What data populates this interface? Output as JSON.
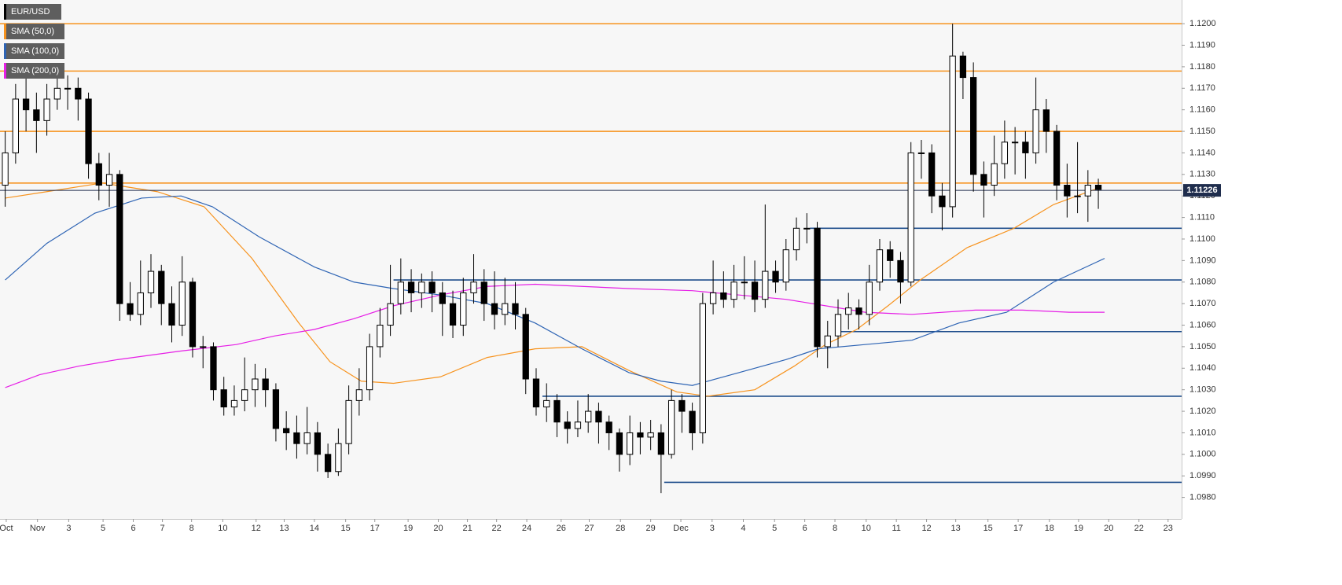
{
  "chart_data": {
    "type": "candlestick",
    "name": "EUR/USD",
    "up_color": "#ffffff",
    "down_color": "#000000",
    "x": [
      0,
      1,
      2,
      3,
      4,
      5,
      6,
      7,
      8,
      9,
      10,
      11,
      12,
      13,
      14,
      15,
      16,
      17,
      18,
      19,
      20,
      21,
      22,
      23,
      24,
      25,
      26,
      27,
      28,
      29,
      30,
      31,
      32,
      33,
      34,
      35,
      36,
      37,
      38,
      39,
      40,
      41,
      42,
      43,
      44,
      45,
      46,
      47,
      48,
      49,
      50,
      51,
      52,
      53,
      54,
      55,
      56,
      57,
      58,
      59,
      60,
      61,
      62,
      63,
      64,
      65,
      66,
      67,
      68,
      69,
      70,
      71,
      72,
      73,
      74,
      75,
      76,
      77,
      78,
      79,
      80,
      81,
      82,
      83,
      84,
      85,
      86,
      87,
      88,
      89,
      90,
      91,
      92,
      93,
      94,
      95,
      96,
      97,
      98,
      99,
      100,
      101,
      102,
      103,
      104,
      105
    ],
    "open": [
      1.1125,
      1.114,
      1.1165,
      1.116,
      1.1155,
      1.1165,
      1.117,
      1.117,
      1.1165,
      1.1135,
      1.1125,
      1.113,
      1.107,
      1.1065,
      1.1075,
      1.1085,
      1.107,
      1.106,
      1.108,
      1.105,
      1.105,
      1.103,
      1.1022,
      1.1025,
      1.103,
      1.1035,
      1.103,
      1.1012,
      1.101,
      1.1005,
      1.101,
      1.1,
      1.0992,
      1.1005,
      1.1025,
      1.103,
      1.105,
      1.106,
      1.107,
      1.108,
      1.1075,
      1.108,
      1.1075,
      1.107,
      1.106,
      1.1075,
      1.108,
      1.107,
      1.1065,
      1.107,
      1.1065,
      1.1035,
      1.1022,
      1.1025,
      1.1015,
      1.1012,
      1.1015,
      1.102,
      1.1015,
      1.101,
      1.1,
      1.101,
      1.1008,
      1.101,
      1.1,
      1.1025,
      1.102,
      1.101,
      1.107,
      1.1075,
      1.1072,
      1.108,
      1.108,
      1.1072,
      1.1085,
      1.108,
      1.1095,
      1.1105,
      1.1105,
      1.105,
      1.1055,
      1.1065,
      1.1068,
      1.1065,
      1.108,
      1.1095,
      1.109,
      1.108,
      1.114,
      1.114,
      1.112,
      1.1115,
      1.1185,
      1.1175,
      1.113,
      1.1125,
      1.1135,
      1.1145,
      1.1145,
      1.114,
      1.116,
      1.115,
      1.1125,
      1.112,
      1.112,
      1.1125
    ],
    "high": [
      1.115,
      1.1172,
      1.1175,
      1.1168,
      1.1172,
      1.1178,
      1.1176,
      1.1175,
      1.1168,
      1.114,
      1.114,
      1.1132,
      1.108,
      1.109,
      1.1093,
      1.1088,
      1.1078,
      1.1092,
      1.1082,
      1.1055,
      1.1052,
      1.1036,
      1.1032,
      1.1045,
      1.1042,
      1.104,
      1.1033,
      1.102,
      1.1018,
      1.1022,
      1.1015,
      1.1005,
      1.1012,
      1.1032,
      1.104,
      1.1056,
      1.1068,
      1.1088,
      1.1091,
      1.1086,
      1.1084,
      1.1085,
      1.108,
      1.1076,
      1.1082,
      1.1093,
      1.1086,
      1.1085,
      1.1082,
      1.108,
      1.1068,
      1.104,
      1.1033,
      1.1028,
      1.102,
      1.1025,
      1.1028,
      1.1024,
      1.1018,
      1.1012,
      1.1018,
      1.1015,
      1.1016,
      1.1014,
      1.103,
      1.1028,
      1.1024,
      1.1075,
      1.109,
      1.1085,
      1.1088,
      1.1092,
      1.109,
      1.1116,
      1.109,
      1.11,
      1.111,
      1.1112,
      1.1108,
      1.1062,
      1.1072,
      1.1075,
      1.1072,
      1.1088,
      1.11,
      1.1099,
      1.1094,
      1.1145,
      1.1146,
      1.1144,
      1.1126,
      1.12,
      1.1187,
      1.1182,
      1.1136,
      1.1148,
      1.1155,
      1.1152,
      1.115,
      1.1175,
      1.1165,
      1.1153,
      1.1135,
      1.1145,
      1.1132,
      1.1128
    ],
    "low": [
      1.1115,
      1.1135,
      1.115,
      1.114,
      1.1148,
      1.116,
      1.116,
      1.1155,
      1.1128,
      1.1118,
      1.1115,
      1.1062,
      1.1062,
      1.106,
      1.1068,
      1.106,
      1.1052,
      1.1055,
      1.1045,
      1.104,
      1.1025,
      1.1018,
      1.1018,
      1.102,
      1.1022,
      1.1022,
      1.1006,
      1.1002,
      1.0998,
      1.1,
      1.0992,
      1.0989,
      1.099,
      1.1,
      1.1018,
      1.1025,
      1.1045,
      1.1055,
      1.1065,
      1.1066,
      1.1068,
      1.1066,
      1.1055,
      1.1054,
      1.1055,
      1.107,
      1.1062,
      1.1058,
      1.106,
      1.1058,
      1.1028,
      1.1018,
      1.1015,
      1.1008,
      1.1005,
      1.1008,
      1.101,
      1.1005,
      1.1002,
      1.0992,
      1.0995,
      1.1,
      1.1002,
      1.0982,
      1.0998,
      1.101,
      1.1002,
      1.1005,
      1.1065,
      1.1068,
      1.1068,
      1.1072,
      1.1066,
      1.1068,
      1.1075,
      1.1076,
      1.109,
      1.1098,
      1.1045,
      1.104,
      1.105,
      1.1058,
      1.1058,
      1.106,
      1.1076,
      1.1082,
      1.107,
      1.1078,
      1.1128,
      1.1112,
      1.1104,
      1.111,
      1.1165,
      1.1122,
      1.111,
      1.112,
      1.1128,
      1.113,
      1.1128,
      1.1135,
      1.114,
      1.1118,
      1.111,
      1.1112,
      1.1108,
      1.1114
    ],
    "close": [
      1.114,
      1.1165,
      1.116,
      1.1155,
      1.1165,
      1.117,
      1.117,
      1.1165,
      1.1135,
      1.1125,
      1.113,
      1.107,
      1.1065,
      1.1075,
      1.1085,
      1.107,
      1.106,
      1.108,
      1.105,
      1.105,
      1.103,
      1.1022,
      1.1025,
      1.103,
      1.1035,
      1.103,
      1.1012,
      1.101,
      1.1005,
      1.101,
      1.1,
      1.0992,
      1.1005,
      1.1025,
      1.103,
      1.105,
      1.106,
      1.107,
      1.108,
      1.1075,
      1.108,
      1.1075,
      1.107,
      1.106,
      1.1075,
      1.108,
      1.107,
      1.1065,
      1.107,
      1.1065,
      1.1035,
      1.1022,
      1.1025,
      1.1015,
      1.1012,
      1.1015,
      1.102,
      1.1015,
      1.101,
      1.1,
      1.101,
      1.1008,
      1.101,
      1.1,
      1.1025,
      1.102,
      1.101,
      1.107,
      1.1075,
      1.1072,
      1.108,
      1.108,
      1.1072,
      1.1085,
      1.108,
      1.1095,
      1.1105,
      1.1105,
      1.105,
      1.1055,
      1.1065,
      1.1068,
      1.1065,
      1.108,
      1.1095,
      1.109,
      1.108,
      1.114,
      1.114,
      1.112,
      1.1115,
      1.1185,
      1.1175,
      1.113,
      1.1125,
      1.1135,
      1.1145,
      1.1145,
      1.114,
      1.116,
      1.115,
      1.1125,
      1.112,
      1.112,
      1.1125,
      1.1123
    ],
    "sma": [
      {
        "name": "SMA (50,0)",
        "color": "#f7931e",
        "x": [
          0,
          4,
          9.3,
          14.6,
          19.1,
          23.7,
          28.2,
          31.2,
          34.2,
          37.3,
          41.8,
          46.3,
          50.9,
          55.4,
          59.9,
          64.5,
          67.5,
          72,
          75.8,
          78.8,
          81.8,
          84.8,
          87.9,
          92.4,
          96.9,
          100.7,
          105.2
        ],
        "values": [
          1.1119,
          1.1122,
          1.1126,
          1.1122,
          1.1115,
          1.1091,
          1.1061,
          1.1043,
          1.1034,
          1.1033,
          1.1036,
          1.1045,
          1.1049,
          1.105,
          1.1039,
          1.1029,
          1.1027,
          1.103,
          1.1041,
          1.1051,
          1.1058,
          1.1069,
          1.1081,
          1.1096,
          1.1105,
          1.1116,
          1.1124
        ]
      },
      {
        "name": "SMA (100,0)",
        "color": "#2e64b4",
        "x": [
          0,
          4,
          8.6,
          13.1,
          16.9,
          19.9,
          24.4,
          29.7,
          33.5,
          37.3,
          41.8,
          46.3,
          50.9,
          55.4,
          59.9,
          63,
          66,
          70.5,
          75,
          78.1,
          82.6,
          87.1,
          91.6,
          96.2,
          100.7,
          105.6
        ],
        "values": [
          1.1081,
          1.1098,
          1.1112,
          1.1119,
          1.112,
          1.1115,
          1.1101,
          1.1087,
          1.108,
          1.1077,
          1.1074,
          1.107,
          1.1061,
          1.1049,
          1.1038,
          1.1034,
          1.1032,
          1.1038,
          1.1044,
          1.1049,
          1.1051,
          1.1053,
          1.1061,
          1.1066,
          1.108,
          1.1091
        ]
      },
      {
        "name": "SMA (200,0)",
        "color": "#e61ee6",
        "x": [
          0,
          3.3,
          7.1,
          10.8,
          16.9,
          22.2,
          25.9,
          29.7,
          33.5,
          37.3,
          41.8,
          46.3,
          50.9,
          55.4,
          59.9,
          66,
          70.5,
          75,
          78.8,
          82.6,
          87.1,
          93.2,
          97.7,
          102.2,
          105.6
        ],
        "values": [
          1.1031,
          1.1037,
          1.1041,
          1.1044,
          1.1048,
          1.1051,
          1.1055,
          1.1058,
          1.1063,
          1.1069,
          1.1074,
          1.1078,
          1.1079,
          1.1078,
          1.1077,
          1.1076,
          1.1074,
          1.1072,
          1.1069,
          1.1066,
          1.1065,
          1.1067,
          1.1067,
          1.1066,
          1.1066
        ]
      }
    ],
    "resistance_color": "#f7931e",
    "resistance_levels": [
      1.12,
      1.1178,
      1.115,
      1.1126
    ],
    "support_color": "#1f4e8c",
    "support_levels": [
      {
        "value": 1.1105,
        "from": 77.3
      },
      {
        "value": 1.1081,
        "from": 37.3
      },
      {
        "value": 1.1057,
        "from": 80.3
      },
      {
        "value": 1.1027,
        "from": 51.6
      },
      {
        "value": 1.0987,
        "from": 63.3
      }
    ],
    "last_price": 1.11226,
    "last_price_color": "#1f2d4d",
    "xlim": [
      -0.5,
      113
    ],
    "ylim": [
      1.097,
      1.1211
    ],
    "xticks": [
      {
        "value": 0.1,
        "label": "Oct"
      },
      {
        "value": 3.1,
        "label": "Nov"
      },
      {
        "value": 6.1,
        "label": "3"
      },
      {
        "value": 9.4,
        "label": "5"
      },
      {
        "value": 12.3,
        "label": "6"
      },
      {
        "value": 15.1,
        "label": "7"
      },
      {
        "value": 17.9,
        "label": "8"
      },
      {
        "value": 20.9,
        "label": "10"
      },
      {
        "value": 24.1,
        "label": "12"
      },
      {
        "value": 26.8,
        "label": "13"
      },
      {
        "value": 29.7,
        "label": "14"
      },
      {
        "value": 32.7,
        "label": "15"
      },
      {
        "value": 35.5,
        "label": "17"
      },
      {
        "value": 38.7,
        "label": "19"
      },
      {
        "value": 41.6,
        "label": "20"
      },
      {
        "value": 44.4,
        "label": "21"
      },
      {
        "value": 47.2,
        "label": "22"
      },
      {
        "value": 50.1,
        "label": "24"
      },
      {
        "value": 53.4,
        "label": "26"
      },
      {
        "value": 56.1,
        "label": "27"
      },
      {
        "value": 59.1,
        "label": "28"
      },
      {
        "value": 62.0,
        "label": "29"
      },
      {
        "value": 64.9,
        "label": "Dec"
      },
      {
        "value": 67.9,
        "label": "3"
      },
      {
        "value": 70.9,
        "label": "4"
      },
      {
        "value": 73.9,
        "label": "5"
      },
      {
        "value": 76.8,
        "label": "6"
      },
      {
        "value": 79.7,
        "label": "8"
      },
      {
        "value": 82.7,
        "label": "10"
      },
      {
        "value": 85.6,
        "label": "11"
      },
      {
        "value": 88.5,
        "label": "12"
      },
      {
        "value": 91.3,
        "label": "13"
      },
      {
        "value": 94.4,
        "label": "15"
      },
      {
        "value": 97.3,
        "label": "17"
      },
      {
        "value": 100.3,
        "label": "18"
      },
      {
        "value": 103.1,
        "label": "19"
      },
      {
        "value": 106.0,
        "label": "20"
      },
      {
        "value": 108.9,
        "label": "22"
      },
      {
        "value": 111.7,
        "label": "23"
      }
    ],
    "yticks": [
      {
        "value": 1.098,
        "label": "1.0980"
      },
      {
        "value": 1.099,
        "label": "1.0990"
      },
      {
        "value": 1.1,
        "label": "1.1000"
      },
      {
        "value": 1.101,
        "label": "1.1010"
      },
      {
        "value": 1.102,
        "label": "1.1020"
      },
      {
        "value": 1.103,
        "label": "1.1030"
      },
      {
        "value": 1.104,
        "label": "1.1040"
      },
      {
        "value": 1.105,
        "label": "1.1050"
      },
      {
        "value": 1.106,
        "label": "1.1060"
      },
      {
        "value": 1.107,
        "label": "1.1070"
      },
      {
        "value": 1.108,
        "label": "1.1080"
      },
      {
        "value": 1.109,
        "label": "1.1090"
      },
      {
        "value": 1.11,
        "label": "1.1100"
      },
      {
        "value": 1.111,
        "label": "1.1110"
      },
      {
        "value": 1.112,
        "label": "1.1120"
      },
      {
        "value": 1.113,
        "label": "1.1130"
      },
      {
        "value": 1.114,
        "label": "1.1140"
      },
      {
        "value": 1.115,
        "label": "1.1150"
      },
      {
        "value": 1.116,
        "label": "1.1160"
      },
      {
        "value": 1.117,
        "label": "1.1170"
      },
      {
        "value": 1.118,
        "label": "1.1180"
      },
      {
        "value": 1.119,
        "label": "1.1190"
      },
      {
        "value": 1.12,
        "label": "1.1200"
      }
    ]
  }
}
